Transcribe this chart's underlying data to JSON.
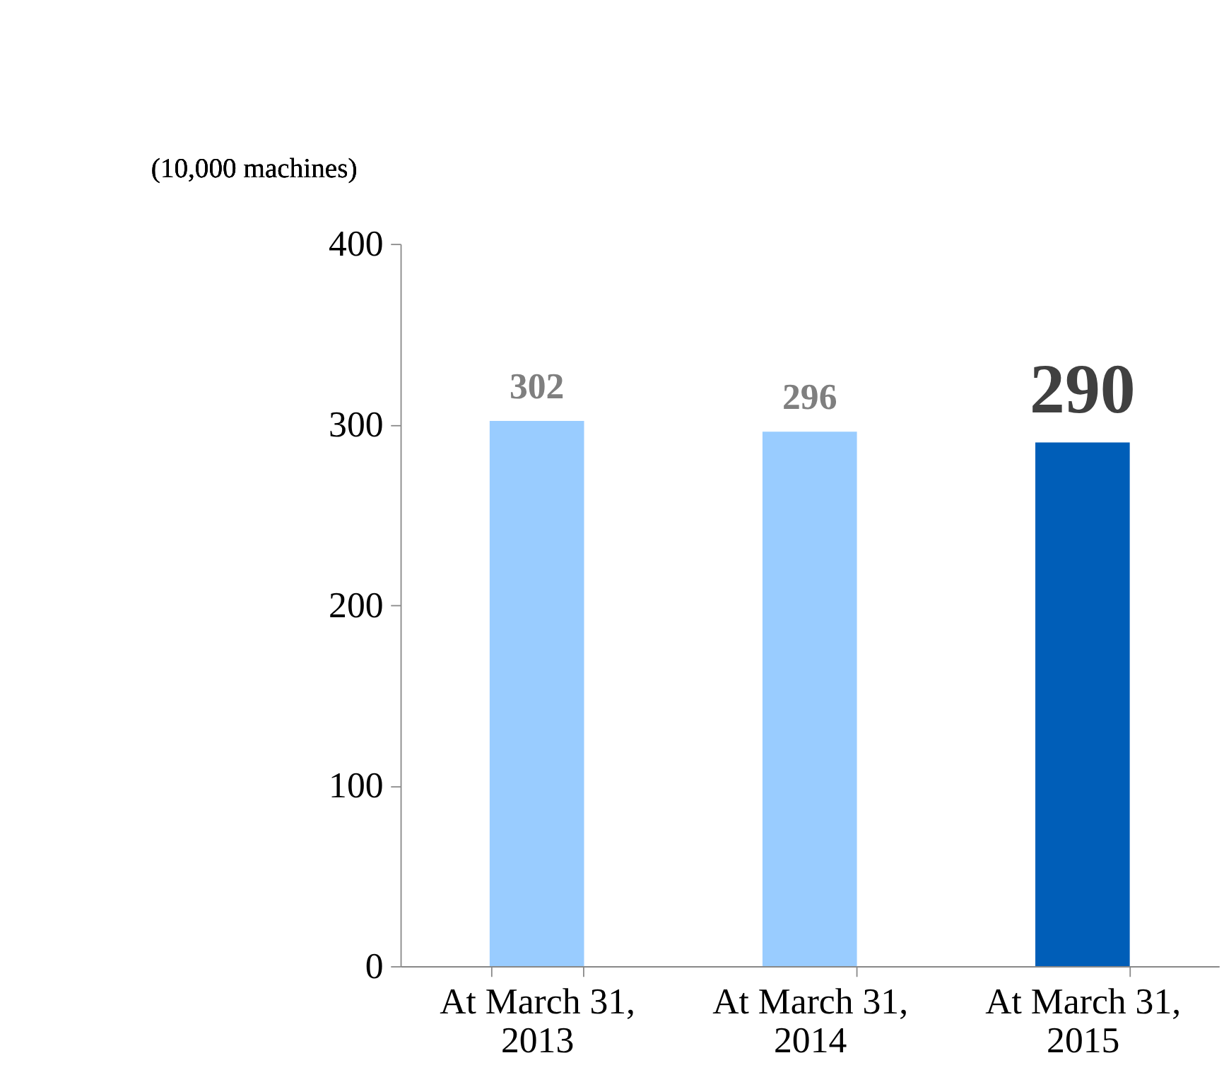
{
  "chart_data": {
    "type": "bar",
    "ylabel": "(10,000 machines)",
    "categories": [
      "At March 31, 2013",
      "At March 31, 2014",
      "At March 31, 2015"
    ],
    "values": [
      302,
      296,
      290
    ],
    "colors": [
      "#99ccff",
      "#99ccff",
      "#005eb8"
    ],
    "ylim": [
      0,
      400
    ],
    "yticks": [
      0,
      100,
      200,
      300,
      400
    ],
    "grid": false,
    "data_labels": true
  }
}
